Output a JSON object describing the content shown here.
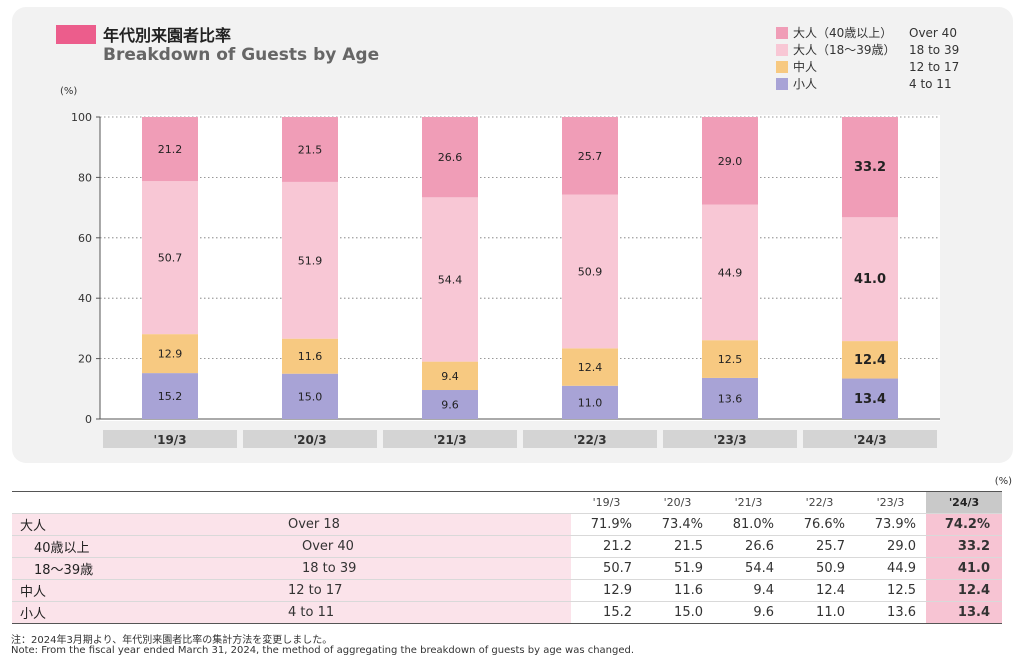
{
  "title": {
    "jp": "年代別来園者比率",
    "en": "Breakdown of Guests by Age"
  },
  "legend": [
    {
      "jp": "大人（40歳以上）",
      "en": "Over 40",
      "color": "#f09db7"
    },
    {
      "jp": "大人（18〜39歳）",
      "en": "18 to 39",
      "color": "#f8c7d5"
    },
    {
      "jp": "中人",
      "en": "12 to 17",
      "color": "#f7c981"
    },
    {
      "jp": "小人",
      "en": "4 to 11",
      "color": "#a8a3d6"
    }
  ],
  "chart_data": {
    "type": "bar",
    "stacked": true,
    "ylabel": "(%)",
    "ylim": [
      0,
      100
    ],
    "yticks": [
      "0",
      "20",
      "40",
      "60",
      "80",
      "100"
    ],
    "categories": [
      "'19/3",
      "'20/3",
      "'21/3",
      "'22/3",
      "'23/3",
      "'24/3"
    ],
    "highlight_index": 5,
    "grid": "dotted horizontal",
    "series": [
      {
        "name": "小人",
        "color": "#a8a3d6",
        "values": [
          15.2,
          15.0,
          9.6,
          11.0,
          13.6,
          13.4
        ],
        "labels": [
          "15.2",
          "15.0",
          "9.6",
          "11.0",
          "13.6",
          "13.4"
        ]
      },
      {
        "name": "中人",
        "color": "#f7c981",
        "values": [
          12.9,
          11.6,
          9.4,
          12.4,
          12.5,
          12.4
        ],
        "labels": [
          "12.9",
          "11.6",
          "9.4",
          "12.4",
          "12.5",
          "12.4"
        ]
      },
      {
        "name": "大人（18〜39歳）",
        "color": "#f8c7d5",
        "values": [
          50.7,
          51.9,
          54.4,
          50.9,
          44.9,
          41.0
        ],
        "labels": [
          "50.7",
          "51.9",
          "54.4",
          "50.9",
          "44.9",
          "41.0"
        ]
      },
      {
        "name": "大人（40歳以上）",
        "color": "#f09db7",
        "values": [
          21.2,
          21.5,
          26.6,
          25.7,
          29.0,
          33.2
        ],
        "labels": [
          "21.2",
          "21.5",
          "26.6",
          "25.7",
          "29.0",
          "33.2"
        ]
      }
    ]
  },
  "table": {
    "unit": "(%)",
    "headers": [
      "'19/3",
      "'20/3",
      "'21/3",
      "'22/3",
      "'23/3",
      "'24/3"
    ],
    "rows": [
      {
        "label": "大人",
        "category": "Over 18",
        "values": [
          "71.9%",
          "73.4%",
          "81.0%",
          "76.6%",
          "73.9%",
          "74.2%"
        ]
      },
      {
        "label": "40歳以上",
        "category": "Over 40",
        "values": [
          "21.2",
          "21.5",
          "26.6",
          "25.7",
          "29.0",
          "33.2"
        ]
      },
      {
        "label": "18〜39歳",
        "category": "18 to 39",
        "values": [
          "50.7",
          "51.9",
          "54.4",
          "50.9",
          "44.9",
          "41.0"
        ]
      },
      {
        "label": "中人",
        "category": "12 to 17",
        "values": [
          "12.9",
          "11.6",
          "9.4",
          "12.4",
          "12.5",
          "12.4"
        ]
      },
      {
        "label": "小人",
        "category": "4 to 11",
        "values": [
          "15.2",
          "15.0",
          "9.6",
          "11.0",
          "13.6",
          "13.4"
        ]
      }
    ]
  },
  "notes": [
    "注：2024年3月期より、年代別来園者比率の集計方法を変更しました。",
    "Note: From the fiscal year ended March 31, 2024, the method of aggregating the breakdown of guests by age was changed."
  ]
}
